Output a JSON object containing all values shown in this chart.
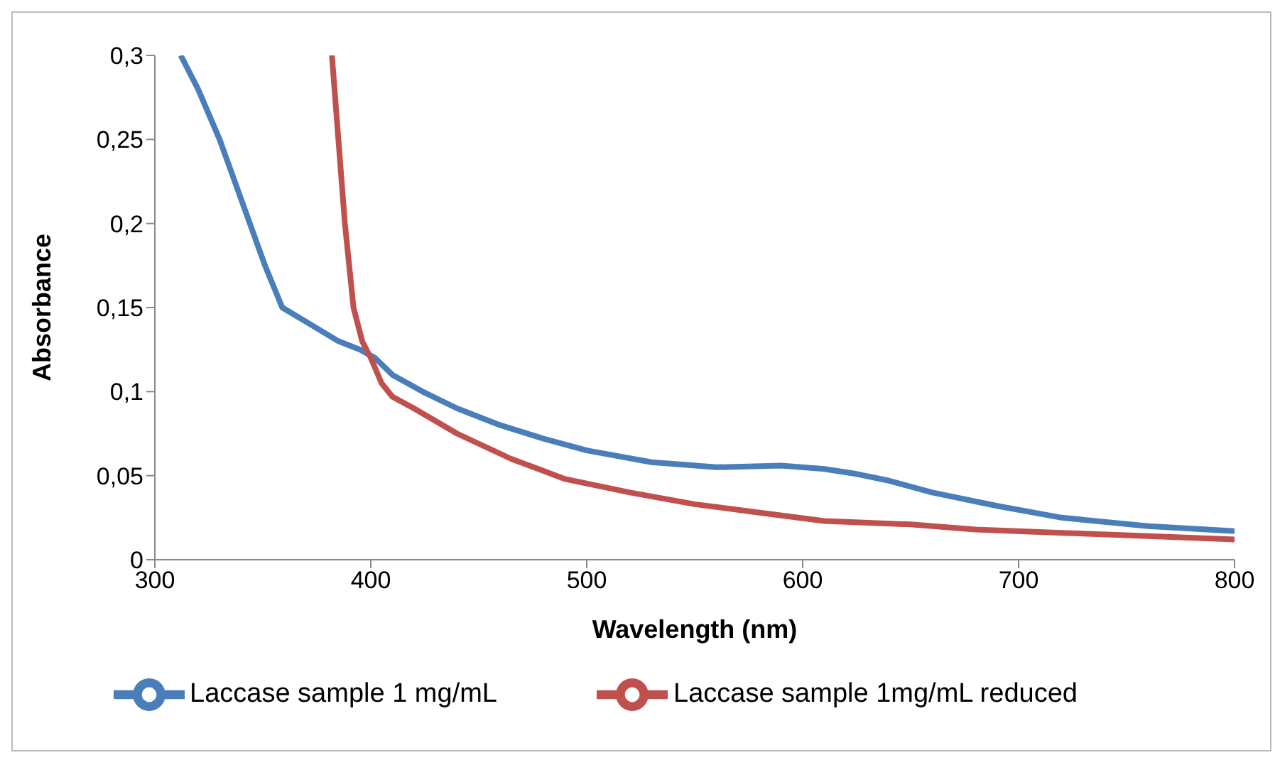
{
  "chart_data": {
    "type": "line",
    "xlabel": "Wavelength (nm)",
    "ylabel": "Absorbance",
    "xlim": [
      300,
      800
    ],
    "xticks": [
      300,
      400,
      500,
      600,
      700,
      800
    ],
    "ylim": [
      0,
      0.3
    ],
    "yticks": [
      {
        "value": 0,
        "label": "0"
      },
      {
        "value": 0.05,
        "label": "0,05"
      },
      {
        "value": 0.1,
        "label": "0,1"
      },
      {
        "value": 0.15,
        "label": "0,15"
      },
      {
        "value": 0.2,
        "label": "0,2"
      },
      {
        "value": 0.25,
        "label": "0,25"
      },
      {
        "value": 0.3,
        "label": "0,3"
      }
    ],
    "grid": false,
    "legend": "bottom",
    "marker": "none",
    "line_style": "solid",
    "series": [
      {
        "name": "Laccase sample 1 mg/mL",
        "color": "#4a7ebb",
        "x": [
          312,
          320,
          330,
          337,
          344,
          351,
          359,
          372,
          385,
          395,
          402,
          410,
          424,
          440,
          460,
          480,
          500,
          530,
          560,
          590,
          610,
          625,
          640,
          660,
          690,
          720,
          760,
          800
        ],
        "values": [
          0.3,
          0.28,
          0.25,
          0.225,
          0.2,
          0.175,
          0.15,
          0.14,
          0.13,
          0.125,
          0.12,
          0.11,
          0.1,
          0.09,
          0.08,
          0.072,
          0.065,
          0.058,
          0.055,
          0.056,
          0.054,
          0.051,
          0.047,
          0.04,
          0.032,
          0.025,
          0.02,
          0.017
        ]
      },
      {
        "name": "Laccase sample 1mg/mL reduced",
        "color": "#c0504d",
        "x": [
          382,
          385,
          388,
          392,
          396,
          400,
          405,
          410,
          420,
          440,
          465,
          490,
          520,
          550,
          580,
          610,
          650,
          680,
          720,
          760,
          800
        ],
        "values": [
          0.3,
          0.25,
          0.2,
          0.15,
          0.13,
          0.12,
          0.105,
          0.097,
          0.09,
          0.075,
          0.06,
          0.048,
          0.04,
          0.033,
          0.028,
          0.023,
          0.021,
          0.018,
          0.016,
          0.014,
          0.012
        ]
      }
    ]
  }
}
